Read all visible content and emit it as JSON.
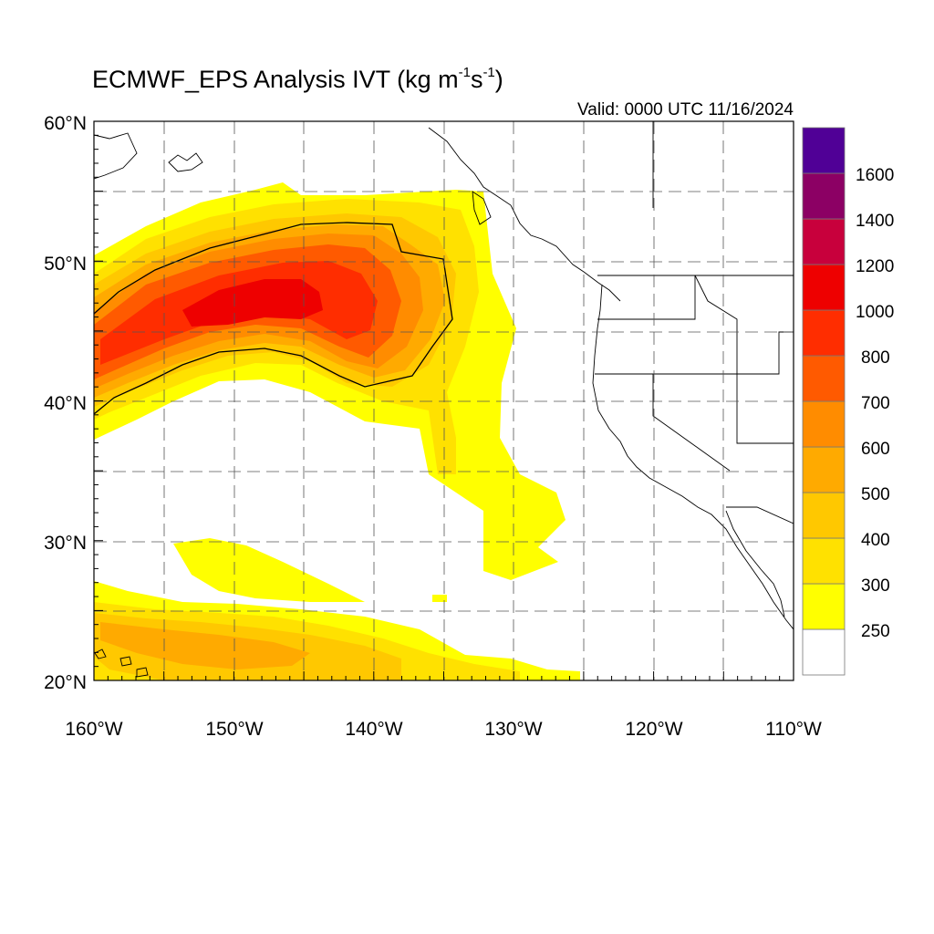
{
  "title": {
    "main": "ECMWF_EPS Analysis IVT (kg m",
    "exp1": "-1",
    "mid": "s",
    "exp2": "-1",
    "close": ")"
  },
  "valid_text": "Valid: 0000 UTC 11/16/2024",
  "map": {
    "lat_range": [
      20,
      60
    ],
    "lon_range": [
      -160,
      -110
    ],
    "lat_labels": [
      "20°N",
      "30°N",
      "40°N",
      "50°N",
      "60°N"
    ],
    "lon_labels": [
      "160°W",
      "150°W",
      "140°W",
      "130°W",
      "120°W",
      "110°W"
    ],
    "grid": true,
    "grid_style": "dashed"
  },
  "colorbar": {
    "levels": [
      "250",
      "300",
      "400",
      "500",
      "600",
      "700",
      "800",
      "1000",
      "1200",
      "1400",
      "1600"
    ],
    "colors": [
      "#ffffff",
      "#ffff00",
      "#ffe100",
      "#ffc800",
      "#ffaa00",
      "#ff8c00",
      "#ff5a00",
      "#ff2d00",
      "#ee0000",
      "#c8003c",
      "#8c0064",
      "#500096"
    ],
    "placement": "right"
  },
  "ivt_field": {
    "units": "kg m-1 s-1",
    "features": [
      {
        "name": "main atmospheric river core",
        "lon": -145,
        "lat": 47,
        "peak_ivt": 1000
      },
      {
        "name": "river extension toward coast",
        "lon": -133,
        "lat": 50,
        "ivt": 400
      },
      {
        "name": "southern plume",
        "lon": -130,
        "lat": 32,
        "ivt": 300
      },
      {
        "name": "subtropical band",
        "lon": -145,
        "lat": 22.5,
        "ivt": 500
      }
    ],
    "contour_level": 600
  }
}
